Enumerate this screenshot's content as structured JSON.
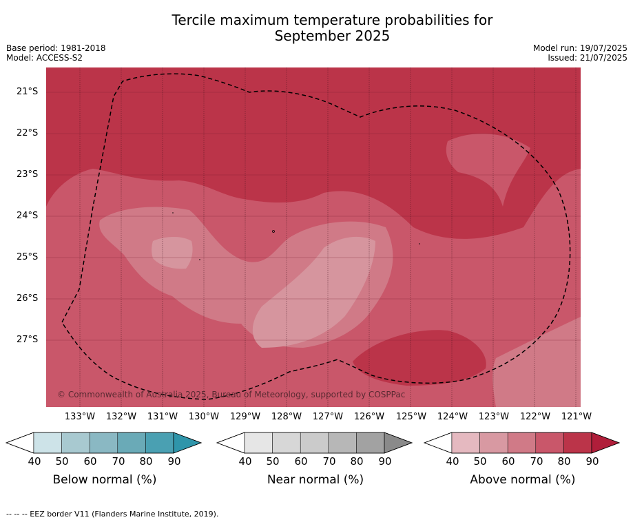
{
  "title_line1": "Tercile maximum temperature probabilities for",
  "title_line2": "September 2025",
  "base_period": "Base period: 1981-2018",
  "model": "Model: ACCESS-S2",
  "model_run": "Model run: 19/07/2025",
  "issued": "Issued: 21/07/2025",
  "copyright": "© Commonwealth of Australia 2025, Bureau of Meteorology, supported by COSPPac",
  "footnote": "--  --  -- EEZ border V11 (Flanders Marine Institute, 2019).",
  "map": {
    "lat_labels": [
      "21°S",
      "22°S",
      "23°S",
      "24°S",
      "25°S",
      "26°S",
      "27°S"
    ],
    "lon_labels": [
      "133°W",
      "132°W",
      "131°W",
      "130°W",
      "129°W",
      "128°W",
      "127°W",
      "126°W",
      "125°W",
      "124°W",
      "123°W",
      "122°W",
      "121°W"
    ],
    "colors": {
      "above_80_90": "#bb3449",
      "above_70_80": "#c9576a",
      "above_60_70": "#d07a87",
      "above_50_60": "#d6959e"
    }
  },
  "colorbars": [
    {
      "label": "Below normal (%)",
      "ticks": [
        "40",
        "50",
        "60",
        "70",
        "80",
        "90"
      ],
      "colors": [
        "#cde3e8",
        "#a8c9d0",
        "#8ab8c3",
        "#6aaab7",
        "#4aa0b2",
        "#2f95aa"
      ]
    },
    {
      "label": "Near normal (%)",
      "ticks": [
        "40",
        "50",
        "60",
        "70",
        "80",
        "90"
      ],
      "colors": [
        "#e6e6e6",
        "#d7d7d7",
        "#cbcbcb",
        "#b7b7b7",
        "#a2a2a2",
        "#8a8a8a"
      ]
    },
    {
      "label": "Above normal (%)",
      "ticks": [
        "40",
        "50",
        "60",
        "70",
        "80",
        "90"
      ],
      "colors": [
        "#e5b9c0",
        "#d899a2",
        "#d07a87",
        "#c9576a",
        "#bb3449",
        "#b01e3a"
      ]
    }
  ]
}
